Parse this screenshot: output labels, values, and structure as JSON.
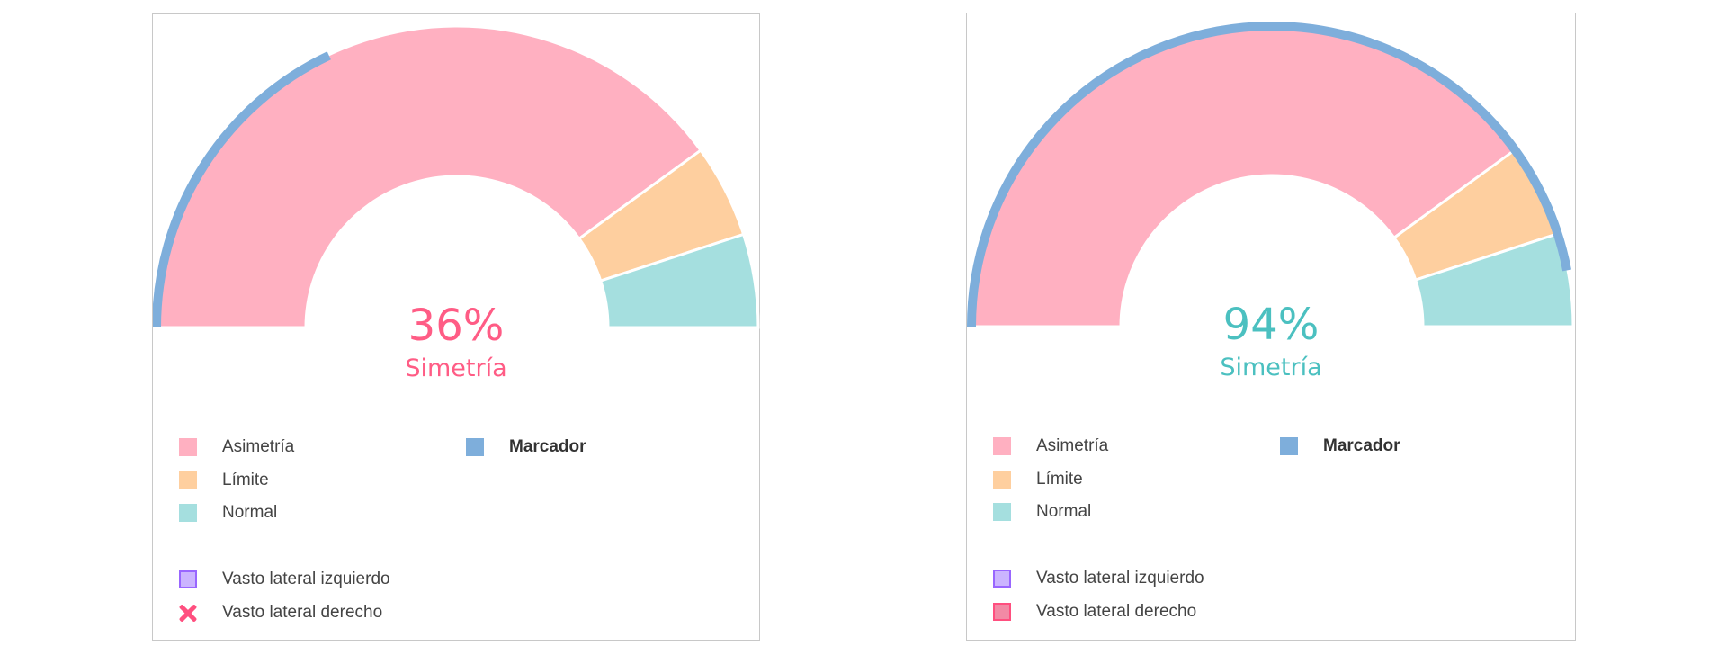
{
  "colors": {
    "asimetria": "#ffb0c1",
    "limite": "#fecf9f",
    "normal": "#a5dfdf",
    "marcador": "#7eaedb",
    "izq_fill": "#cbb4ff",
    "izq_border": "#9966ff",
    "der": "#ff4f7f",
    "der_fill": "#f28aa5"
  },
  "chart_data": [
    {
      "type": "gauge",
      "value_percent": 36,
      "value_label": "36%",
      "label": "Simetría",
      "label_color": "#ff5c85",
      "bands": [
        {
          "name": "Asimetría",
          "from": 0,
          "to": 80
        },
        {
          "name": "Límite",
          "from": 80,
          "to": 90
        },
        {
          "name": "Normal",
          "from": 90,
          "to": 100
        }
      ],
      "marker": 36,
      "legend": {
        "bands": [
          "Asimetría",
          "Límite",
          "Normal"
        ],
        "marker": "Marcador",
        "series": [
          {
            "name": "Vasto lateral izquierdo",
            "icon": "square"
          },
          {
            "name": "Vasto lateral derecho",
            "icon": "cross"
          }
        ]
      }
    },
    {
      "type": "gauge",
      "value_percent": 94,
      "value_label": "94%",
      "label": "Simetría",
      "label_color": "#4bc0c0",
      "bands": [
        {
          "name": "Asimetría",
          "from": 0,
          "to": 80
        },
        {
          "name": "Límite",
          "from": 80,
          "to": 90
        },
        {
          "name": "Normal",
          "from": 90,
          "to": 100
        }
      ],
      "marker": 94,
      "legend": {
        "bands": [
          "Asimetría",
          "Límite",
          "Normal"
        ],
        "marker": "Marcador",
        "series": [
          {
            "name": "Vasto lateral izquierdo",
            "icon": "square"
          },
          {
            "name": "Vasto lateral derecho",
            "icon": "square"
          }
        ]
      }
    }
  ]
}
